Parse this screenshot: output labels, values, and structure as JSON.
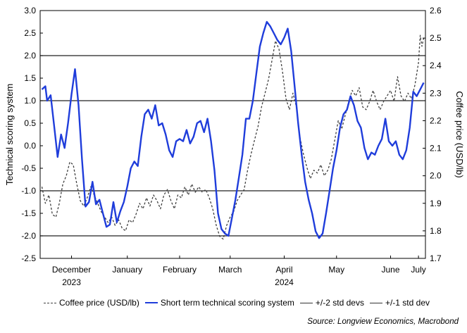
{
  "chart_data": {
    "type": "line",
    "ylabel": "Technical scoring system",
    "y2label": "Coffee price (USD/lb)",
    "ylim": [
      -2.5,
      3.0
    ],
    "y2lim": [
      1.7,
      2.6
    ],
    "yticks": [
      "3.0",
      "2.5",
      "2.0",
      "1.5",
      "1.0",
      "0.5",
      "0.0",
      "-0.5",
      "-1.0",
      "-1.5",
      "-2.0",
      "-2.5"
    ],
    "y2ticks": [
      "2.6",
      "2.5",
      "2.4",
      "2.3",
      "2.2",
      "2.1",
      "2.0",
      "1.9",
      "1.8",
      "1.7"
    ],
    "xlim": [
      "2023-11-27",
      "2024-07-05"
    ],
    "xticks": [
      {
        "date": "2023-12-15",
        "label": "December",
        "sub": "2023"
      },
      {
        "date": "2024-01-16",
        "label": "January",
        "sub": ""
      },
      {
        "date": "2024-02-15",
        "label": "February",
        "sub": ""
      },
      {
        "date": "2024-03-15",
        "label": "March",
        "sub": ""
      },
      {
        "date": "2024-04-15",
        "label": "April",
        "sub": "2024"
      },
      {
        "date": "2024-05-15",
        "label": "May",
        "sub": ""
      },
      {
        "date": "2024-06-15",
        "label": "June",
        "sub": ""
      },
      {
        "date": "2024-07-01",
        "label": "July",
        "sub": ""
      }
    ],
    "hlines": [
      2.0,
      1.0,
      -1.0,
      -2.0
    ],
    "legend_placement": "bottom",
    "legend": [
      "Coffee price (USD/lb)",
      "Short term technical scoring system",
      "+/-2 std devs",
      "+/-1 std dev"
    ],
    "source": "Source: Longview Economics, Macrobond",
    "series": [
      {
        "name": "Coffee price (USD/lb)",
        "axis": "right",
        "color": "#404040",
        "dash": "dashed",
        "points": [
          [
            "2023-11-28",
            1.96
          ],
          [
            "2023-11-30",
            1.9
          ],
          [
            "2023-12-02",
            1.93
          ],
          [
            "2023-12-04",
            1.86
          ],
          [
            "2023-12-06",
            1.85
          ],
          [
            "2023-12-08",
            1.9
          ],
          [
            "2023-12-10",
            1.97
          ],
          [
            "2023-12-12",
            2.0
          ],
          [
            "2023-12-14",
            2.05
          ],
          [
            "2023-12-16",
            2.04
          ],
          [
            "2023-12-18",
            1.97
          ],
          [
            "2023-12-20",
            1.91
          ],
          [
            "2023-12-22",
            1.89
          ],
          [
            "2023-12-24",
            1.92
          ],
          [
            "2023-12-26",
            1.96
          ],
          [
            "2023-12-28",
            1.93
          ],
          [
            "2023-12-30",
            1.9
          ],
          [
            "2024-01-01",
            1.87
          ],
          [
            "2024-01-03",
            1.85
          ],
          [
            "2024-01-05",
            1.83
          ],
          [
            "2024-01-07",
            1.85
          ],
          [
            "2024-01-09",
            1.82
          ],
          [
            "2024-01-11",
            1.84
          ],
          [
            "2024-01-13",
            1.81
          ],
          [
            "2024-01-15",
            1.8
          ],
          [
            "2024-01-17",
            1.84
          ],
          [
            "2024-01-19",
            1.83
          ],
          [
            "2024-01-21",
            1.86
          ],
          [
            "2024-01-23",
            1.9
          ],
          [
            "2024-01-25",
            1.88
          ],
          [
            "2024-01-27",
            1.92
          ],
          [
            "2024-01-29",
            1.89
          ],
          [
            "2024-01-31",
            1.93
          ],
          [
            "2024-02-02",
            1.91
          ],
          [
            "2024-02-04",
            1.88
          ],
          [
            "2024-02-06",
            1.93
          ],
          [
            "2024-02-08",
            1.95
          ],
          [
            "2024-02-10",
            1.91
          ],
          [
            "2024-02-12",
            1.88
          ],
          [
            "2024-02-14",
            1.93
          ],
          [
            "2024-02-16",
            1.92
          ],
          [
            "2024-02-18",
            1.96
          ],
          [
            "2024-02-20",
            1.93
          ],
          [
            "2024-02-22",
            1.97
          ],
          [
            "2024-02-24",
            1.94
          ],
          [
            "2024-02-26",
            1.96
          ],
          [
            "2024-02-28",
            1.94
          ],
          [
            "2024-03-01",
            1.95
          ],
          [
            "2024-03-03",
            1.92
          ],
          [
            "2024-03-05",
            1.88
          ],
          [
            "2024-03-07",
            1.82
          ],
          [
            "2024-03-09",
            1.78
          ],
          [
            "2024-03-11",
            1.77
          ],
          [
            "2024-03-13",
            1.82
          ],
          [
            "2024-03-15",
            1.85
          ],
          [
            "2024-03-17",
            1.87
          ],
          [
            "2024-03-19",
            1.91
          ],
          [
            "2024-03-21",
            1.93
          ],
          [
            "2024-03-23",
            1.95
          ],
          [
            "2024-03-25",
            2.02
          ],
          [
            "2024-03-27",
            2.08
          ],
          [
            "2024-03-29",
            2.13
          ],
          [
            "2024-03-31",
            2.18
          ],
          [
            "2024-04-02",
            2.25
          ],
          [
            "2024-04-04",
            2.3
          ],
          [
            "2024-04-06",
            2.35
          ],
          [
            "2024-04-08",
            2.42
          ],
          [
            "2024-04-10",
            2.49
          ],
          [
            "2024-04-12",
            2.46
          ],
          [
            "2024-04-14",
            2.38
          ],
          [
            "2024-04-16",
            2.28
          ],
          [
            "2024-04-18",
            2.24
          ],
          [
            "2024-04-20",
            2.3
          ],
          [
            "2024-04-22",
            2.25
          ],
          [
            "2024-04-24",
            2.14
          ],
          [
            "2024-04-26",
            2.08
          ],
          [
            "2024-04-28",
            2.03
          ],
          [
            "2024-04-30",
            1.99
          ],
          [
            "2024-05-02",
            2.02
          ],
          [
            "2024-05-04",
            2.01
          ],
          [
            "2024-05-06",
            2.04
          ],
          [
            "2024-05-08",
            2.0
          ],
          [
            "2024-05-10",
            2.02
          ],
          [
            "2024-05-12",
            2.06
          ],
          [
            "2024-05-14",
            2.13
          ],
          [
            "2024-05-16",
            2.2
          ],
          [
            "2024-05-18",
            2.17
          ],
          [
            "2024-05-20",
            2.22
          ],
          [
            "2024-05-22",
            2.27
          ],
          [
            "2024-05-24",
            2.31
          ],
          [
            "2024-05-26",
            2.29
          ],
          [
            "2024-05-28",
            2.32
          ],
          [
            "2024-05-30",
            2.25
          ],
          [
            "2024-06-01",
            2.24
          ],
          [
            "2024-06-03",
            2.27
          ],
          [
            "2024-06-05",
            2.31
          ],
          [
            "2024-06-07",
            2.27
          ],
          [
            "2024-06-09",
            2.24
          ],
          [
            "2024-06-11",
            2.27
          ],
          [
            "2024-06-13",
            2.29
          ],
          [
            "2024-06-15",
            2.31
          ],
          [
            "2024-06-17",
            2.27
          ],
          [
            "2024-06-19",
            2.36
          ],
          [
            "2024-06-21",
            2.29
          ],
          [
            "2024-06-23",
            2.27
          ],
          [
            "2024-06-25",
            2.3
          ],
          [
            "2024-06-27",
            2.28
          ],
          [
            "2024-06-29",
            2.33
          ],
          [
            "2024-07-01",
            2.41
          ],
          [
            "2024-07-02",
            2.51
          ],
          [
            "2024-07-03",
            2.47
          ],
          [
            "2024-07-04",
            2.5
          ]
        ]
      },
      {
        "name": "Short term technical scoring system",
        "axis": "left",
        "color": "#1f3ddb",
        "dash": "solid",
        "points": [
          [
            "2023-11-28",
            1.25
          ],
          [
            "2023-11-30",
            1.32
          ],
          [
            "2023-12-01",
            1.0
          ],
          [
            "2023-12-03",
            1.12
          ],
          [
            "2023-12-05",
            0.45
          ],
          [
            "2023-12-07",
            -0.25
          ],
          [
            "2023-12-09",
            0.25
          ],
          [
            "2023-12-11",
            -0.05
          ],
          [
            "2023-12-13",
            0.5
          ],
          [
            "2023-12-15",
            1.15
          ],
          [
            "2023-12-17",
            1.7
          ],
          [
            "2023-12-19",
            0.9
          ],
          [
            "2023-12-21",
            -0.3
          ],
          [
            "2023-12-23",
            -1.35
          ],
          [
            "2023-12-25",
            -1.25
          ],
          [
            "2023-12-27",
            -0.8
          ],
          [
            "2023-12-29",
            -1.3
          ],
          [
            "2023-12-31",
            -1.2
          ],
          [
            "2024-01-02",
            -1.5
          ],
          [
            "2024-01-04",
            -1.8
          ],
          [
            "2024-01-06",
            -1.75
          ],
          [
            "2024-01-08",
            -1.25
          ],
          [
            "2024-01-10",
            -1.7
          ],
          [
            "2024-01-12",
            -1.45
          ],
          [
            "2024-01-14",
            -1.25
          ],
          [
            "2024-01-16",
            -0.9
          ],
          [
            "2024-01-18",
            -0.5
          ],
          [
            "2024-01-20",
            -0.35
          ],
          [
            "2024-01-22",
            -0.45
          ],
          [
            "2024-01-24",
            0.2
          ],
          [
            "2024-01-26",
            0.7
          ],
          [
            "2024-01-28",
            0.8
          ],
          [
            "2024-01-30",
            0.6
          ],
          [
            "2024-02-01",
            0.9
          ],
          [
            "2024-02-03",
            0.45
          ],
          [
            "2024-02-05",
            0.5
          ],
          [
            "2024-02-07",
            0.25
          ],
          [
            "2024-02-09",
            -0.1
          ],
          [
            "2024-02-11",
            -0.25
          ],
          [
            "2024-02-13",
            0.1
          ],
          [
            "2024-02-15",
            0.15
          ],
          [
            "2024-02-17",
            0.1
          ],
          [
            "2024-02-19",
            0.35
          ],
          [
            "2024-02-21",
            0.05
          ],
          [
            "2024-02-23",
            0.2
          ],
          [
            "2024-02-25",
            0.5
          ],
          [
            "2024-02-27",
            0.55
          ],
          [
            "2024-02-29",
            0.3
          ],
          [
            "2024-03-02",
            0.6
          ],
          [
            "2024-03-04",
            0.1
          ],
          [
            "2024-03-06",
            -0.55
          ],
          [
            "2024-03-08",
            -1.5
          ],
          [
            "2024-03-10",
            -1.85
          ],
          [
            "2024-03-12",
            -1.95
          ],
          [
            "2024-03-14",
            -2.0
          ],
          [
            "2024-03-16",
            -1.6
          ],
          [
            "2024-03-18",
            -1.2
          ],
          [
            "2024-03-20",
            -0.7
          ],
          [
            "2024-03-22",
            -0.2
          ],
          [
            "2024-03-24",
            0.6
          ],
          [
            "2024-03-26",
            0.6
          ],
          [
            "2024-03-28",
            1.0
          ],
          [
            "2024-03-30",
            1.6
          ],
          [
            "2024-04-01",
            2.2
          ],
          [
            "2024-04-03",
            2.5
          ],
          [
            "2024-04-05",
            2.75
          ],
          [
            "2024-04-07",
            2.65
          ],
          [
            "2024-04-09",
            2.5
          ],
          [
            "2024-04-11",
            2.35
          ],
          [
            "2024-04-13",
            2.25
          ],
          [
            "2024-04-15",
            2.4
          ],
          [
            "2024-04-17",
            2.6
          ],
          [
            "2024-04-19",
            2.1
          ],
          [
            "2024-04-21",
            1.3
          ],
          [
            "2024-04-23",
            0.5
          ],
          [
            "2024-04-25",
            -0.2
          ],
          [
            "2024-04-27",
            -0.8
          ],
          [
            "2024-04-29",
            -1.2
          ],
          [
            "2024-05-01",
            -1.5
          ],
          [
            "2024-05-03",
            -1.9
          ],
          [
            "2024-05-05",
            -2.05
          ],
          [
            "2024-05-07",
            -1.95
          ],
          [
            "2024-05-09",
            -1.5
          ],
          [
            "2024-05-11",
            -1.0
          ],
          [
            "2024-05-13",
            -0.5
          ],
          [
            "2024-05-15",
            -0.1
          ],
          [
            "2024-05-17",
            0.4
          ],
          [
            "2024-05-19",
            0.7
          ],
          [
            "2024-05-21",
            0.8
          ],
          [
            "2024-05-23",
            1.1
          ],
          [
            "2024-05-25",
            0.9
          ],
          [
            "2024-05-27",
            0.55
          ],
          [
            "2024-05-29",
            0.4
          ],
          [
            "2024-05-31",
            -0.05
          ],
          [
            "2024-06-02",
            -0.3
          ],
          [
            "2024-06-04",
            -0.15
          ],
          [
            "2024-06-06",
            -0.2
          ],
          [
            "2024-06-08",
            0.0
          ],
          [
            "2024-06-10",
            0.15
          ],
          [
            "2024-06-12",
            0.6
          ],
          [
            "2024-06-14",
            0.1
          ],
          [
            "2024-06-16",
            0.0
          ],
          [
            "2024-06-18",
            0.1
          ],
          [
            "2024-06-20",
            -0.2
          ],
          [
            "2024-06-22",
            -0.3
          ],
          [
            "2024-06-24",
            -0.1
          ],
          [
            "2024-06-26",
            0.4
          ],
          [
            "2024-06-28",
            1.2
          ],
          [
            "2024-06-30",
            1.1
          ],
          [
            "2024-07-02",
            1.25
          ],
          [
            "2024-07-04",
            1.4
          ]
        ]
      }
    ]
  }
}
